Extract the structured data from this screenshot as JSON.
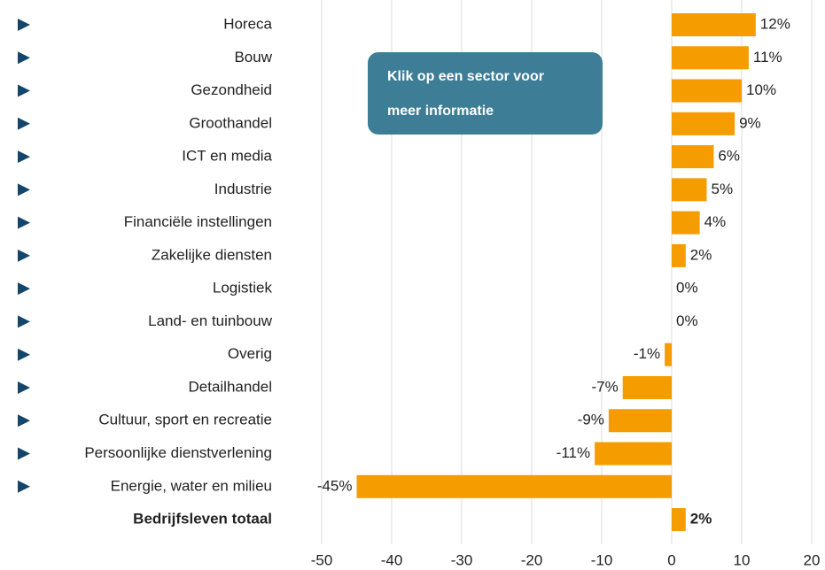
{
  "chart_data": {
    "type": "bar",
    "orientation": "horizontal",
    "categories": [
      "Horeca",
      "Bouw",
      "Gezondheid",
      "Groothandel",
      "ICT en media",
      "Industrie",
      "Financiële instellingen",
      "Zakelijke diensten",
      "Logistiek",
      "Land- en tuinbouw",
      "Overig",
      "Detailhandel",
      "Cultuur, sport en recreatie",
      "Persoonlijke dienstverlening",
      "Energie, water en milieu",
      "Bedrijfsleven totaal"
    ],
    "values": [
      12,
      11,
      10,
      9,
      6,
      5,
      4,
      2,
      0,
      0,
      -1,
      -7,
      -9,
      -11,
      -45,
      2
    ],
    "value_labels": [
      "12%",
      "11%",
      "10%",
      "9%",
      "6%",
      "5%",
      "4%",
      "2%",
      "0%",
      "0%",
      "-1%",
      "-7%",
      "-9%",
      "-11%",
      "-45%",
      "2%"
    ],
    "color": "#f59c00",
    "xlim": [
      -50,
      20
    ],
    "xticks": [
      -50,
      -40,
      -30,
      -20,
      -10,
      0,
      10,
      20
    ],
    "grid": true,
    "annotation": [
      "Klik op een sector voor",
      "meer informatie"
    ]
  }
}
